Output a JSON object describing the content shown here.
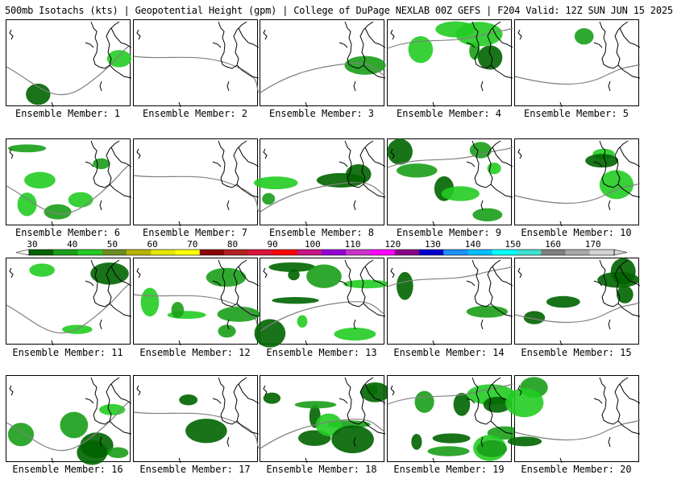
{
  "header": {
    "title": "500mb Isotachs (kts) | Geopotential Height (gpm) | College of DuPage NEXLAB   00Z GEFS | F204 Valid: 12Z SUN JUN 15 2025"
  },
  "panels": [
    {
      "label": "Ensemble Member: 1"
    },
    {
      "label": "Ensemble Member: 2"
    },
    {
      "label": "Ensemble Member: 3"
    },
    {
      "label": "Ensemble Member: 4"
    },
    {
      "label": "Ensemble Member: 5"
    },
    {
      "label": "Ensemble Member: 6"
    },
    {
      "label": "Ensemble Member: 7"
    },
    {
      "label": "Ensemble Member: 8"
    },
    {
      "label": "Ensemble Member: 9"
    },
    {
      "label": "Ensemble Member: 10"
    },
    {
      "label": "Ensemble Member: 11"
    },
    {
      "label": "Ensemble Member: 12"
    },
    {
      "label": "Ensemble Member: 13"
    },
    {
      "label": "Ensemble Member: 14"
    },
    {
      "label": "Ensemble Member: 15"
    },
    {
      "label": "Ensemble Member: 16"
    },
    {
      "label": "Ensemble Member: 17"
    },
    {
      "label": "Ensemble Member: 18"
    },
    {
      "label": "Ensemble Member: 19"
    },
    {
      "label": "Ensemble Member: 20"
    }
  ],
  "colorbar": {
    "ticks": [
      "30",
      "40",
      "50",
      "60",
      "70",
      "80",
      "90",
      "100",
      "110",
      "120",
      "130",
      "140",
      "150",
      "160",
      "170"
    ],
    "colors": [
      "#006400",
      "#1a9e1a",
      "#22cc22",
      "#6b8e23",
      "#b8b400",
      "#e6e600",
      "#ffff00",
      "#8b0000",
      "#b22222",
      "#dc143c",
      "#ff0000",
      "#c71585",
      "#9400d3",
      "#cc33cc",
      "#ff00ff",
      "#8b008b",
      "#0000cd",
      "#1e90ff",
      "#00bfff",
      "#00ffff",
      "#40e0d0",
      "#808080",
      "#a9a9a9",
      "#d3d3d3"
    ]
  }
}
